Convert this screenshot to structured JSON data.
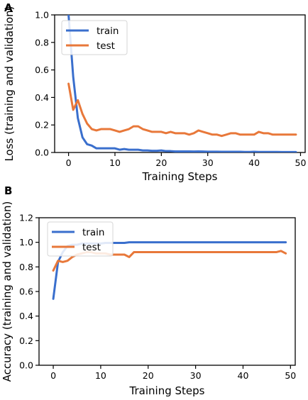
{
  "chart_data": [
    {
      "panel": "A",
      "type": "line",
      "xlabel": "Training Steps",
      "ylabel": "Loss (training and validation)",
      "xlim": [
        -3,
        51
      ],
      "ylim": [
        0.0,
        1.0
      ],
      "xticks": [
        0,
        10,
        20,
        30,
        40,
        50
      ],
      "yticks": [
        0.0,
        0.2,
        0.4,
        0.6,
        0.8,
        1.0
      ],
      "ytick_labels": [
        "0.0",
        "0.2",
        "0.4",
        "0.6",
        "0.8",
        "1.0"
      ],
      "grid": false,
      "legend": "top-left",
      "series": [
        {
          "name": "train",
          "color": "#3a6fcd",
          "x": [
            0,
            1,
            2,
            3,
            4,
            5,
            6,
            7,
            8,
            9,
            10,
            11,
            12,
            13,
            14,
            15,
            16,
            17,
            18,
            19,
            20,
            21,
            22,
            23,
            24,
            25,
            26,
            27,
            28,
            29,
            30,
            31,
            32,
            33,
            34,
            35,
            36,
            37,
            38,
            39,
            40,
            41,
            42,
            43,
            44,
            45,
            46,
            47,
            48,
            49
          ],
          "y": [
            1.0,
            0.55,
            0.25,
            0.11,
            0.06,
            0.05,
            0.03,
            0.03,
            0.03,
            0.03,
            0.03,
            0.02,
            0.025,
            0.02,
            0.02,
            0.02,
            0.015,
            0.015,
            0.012,
            0.012,
            0.015,
            0.01,
            0.01,
            0.008,
            0.008,
            0.008,
            0.008,
            0.007,
            0.008,
            0.007,
            0.006,
            0.006,
            0.006,
            0.005,
            0.005,
            0.005,
            0.005,
            0.005,
            0.004,
            0.004,
            0.005,
            0.004,
            0.004,
            0.004,
            0.004,
            0.004,
            0.003,
            0.003,
            0.003,
            0.003
          ]
        },
        {
          "name": "test",
          "color": "#e8783a",
          "x": [
            0,
            1,
            2,
            3,
            4,
            5,
            6,
            7,
            8,
            9,
            10,
            11,
            12,
            13,
            14,
            15,
            16,
            17,
            18,
            19,
            20,
            21,
            22,
            23,
            24,
            25,
            26,
            27,
            28,
            29,
            30,
            31,
            32,
            33,
            34,
            35,
            36,
            37,
            38,
            39,
            40,
            41,
            42,
            43,
            44,
            45,
            46,
            47,
            48,
            49
          ],
          "y": [
            0.5,
            0.31,
            0.38,
            0.28,
            0.21,
            0.17,
            0.16,
            0.17,
            0.17,
            0.17,
            0.16,
            0.15,
            0.16,
            0.17,
            0.19,
            0.19,
            0.17,
            0.16,
            0.15,
            0.15,
            0.15,
            0.14,
            0.15,
            0.14,
            0.14,
            0.14,
            0.13,
            0.14,
            0.16,
            0.15,
            0.14,
            0.13,
            0.13,
            0.12,
            0.13,
            0.14,
            0.14,
            0.13,
            0.13,
            0.13,
            0.13,
            0.15,
            0.14,
            0.14,
            0.13,
            0.13,
            0.13,
            0.13,
            0.13,
            0.13
          ]
        }
      ]
    },
    {
      "panel": "B",
      "type": "line",
      "xlabel": "Training Steps",
      "ylabel": "Accuracy (training and validation)",
      "xlim": [
        -3,
        51
      ],
      "ylim": [
        0.0,
        1.2
      ],
      "xticks": [
        0,
        10,
        20,
        30,
        40,
        50
      ],
      "yticks": [
        0.0,
        0.2,
        0.4,
        0.6,
        0.8,
        1.0,
        1.2
      ],
      "ytick_labels": [
        "0.0",
        "0.2",
        "0.4",
        "0.6",
        "0.8",
        "1.0",
        "1.2"
      ],
      "grid": false,
      "legend": "top-left",
      "series": [
        {
          "name": "train",
          "color": "#3a6fcd",
          "x": [
            0,
            1,
            2,
            3,
            4,
            5,
            6,
            7,
            8,
            9,
            10,
            11,
            12,
            13,
            14,
            15,
            16,
            17,
            18,
            19,
            20,
            21,
            22,
            23,
            24,
            25,
            26,
            27,
            28,
            29,
            30,
            31,
            32,
            33,
            34,
            35,
            36,
            37,
            38,
            39,
            40,
            41,
            42,
            43,
            44,
            45,
            46,
            47,
            48,
            49
          ],
          "y": [
            0.54,
            0.84,
            0.92,
            0.97,
            0.98,
            0.98,
            0.99,
            0.99,
            0.99,
            0.99,
            0.99,
            0.995,
            0.995,
            0.995,
            0.995,
            0.995,
            1.0,
            1.0,
            1.0,
            1.0,
            1.0,
            1.0,
            1.0,
            1.0,
            1.0,
            1.0,
            1.0,
            1.0,
            1.0,
            1.0,
            1.0,
            1.0,
            1.0,
            1.0,
            1.0,
            1.0,
            1.0,
            1.0,
            1.0,
            1.0,
            1.0,
            1.0,
            1.0,
            1.0,
            1.0,
            1.0,
            1.0,
            1.0,
            1.0,
            1.0
          ]
        },
        {
          "name": "test",
          "color": "#e8783a",
          "x": [
            0,
            1,
            2,
            3,
            4,
            5,
            6,
            7,
            8,
            9,
            10,
            11,
            12,
            13,
            14,
            15,
            16,
            17,
            18,
            19,
            20,
            21,
            22,
            23,
            24,
            25,
            26,
            27,
            28,
            29,
            30,
            31,
            32,
            33,
            34,
            35,
            36,
            37,
            38,
            39,
            40,
            41,
            42,
            43,
            44,
            45,
            46,
            47,
            48,
            49
          ],
          "y": [
            0.77,
            0.85,
            0.84,
            0.85,
            0.88,
            0.9,
            0.91,
            0.92,
            0.92,
            0.91,
            0.91,
            0.91,
            0.9,
            0.9,
            0.9,
            0.9,
            0.88,
            0.92,
            0.92,
            0.92,
            0.92,
            0.92,
            0.92,
            0.92,
            0.92,
            0.92,
            0.92,
            0.92,
            0.92,
            0.92,
            0.92,
            0.92,
            0.92,
            0.92,
            0.92,
            0.92,
            0.92,
            0.92,
            0.92,
            0.92,
            0.92,
            0.92,
            0.92,
            0.92,
            0.92,
            0.92,
            0.92,
            0.92,
            0.93,
            0.91
          ]
        }
      ]
    }
  ]
}
